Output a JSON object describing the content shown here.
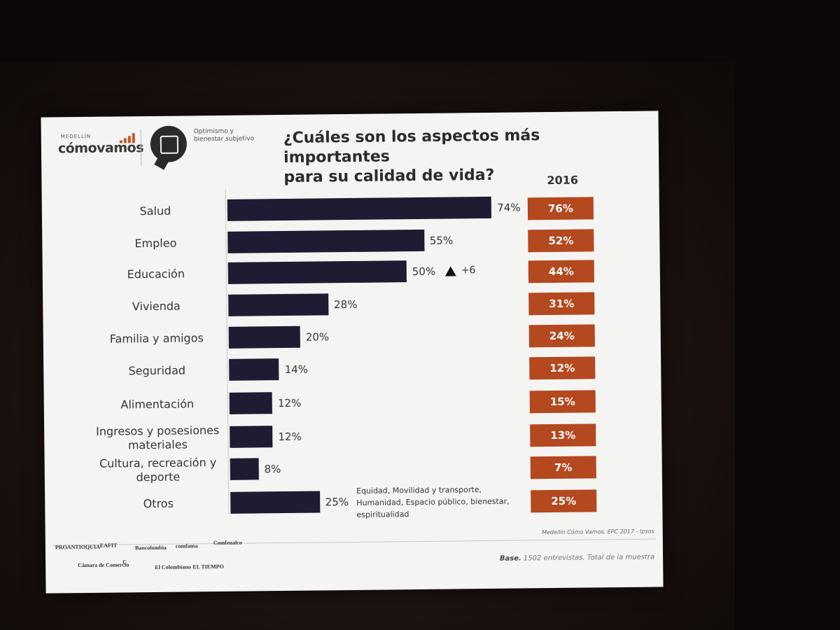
{
  "header": {
    "logo_small": "MEDELLÍN",
    "logo_main": "cómovamos",
    "section_label_1": "Optimismo y",
    "section_label_2": "bienestar subjetivo",
    "title_line1": "¿Cuáles son los aspectos más importantes",
    "title_line2": "para su calidad de vida?"
  },
  "colors": {
    "bar": "#1f1b33",
    "box": "#b4481e"
  },
  "chart_data": {
    "type": "bar",
    "orientation": "horizontal",
    "title": "¿Cuáles son los aspectos más importantes para su calidad de vida?",
    "categories": [
      "Salud",
      "Empleo",
      "Educación",
      "Vivienda",
      "Familia y amigos",
      "Seguridad",
      "Alimentación",
      "Ingresos y posesiones materiales",
      "Cultura, recreación y deporte",
      "Otros"
    ],
    "category_lines": [
      [
        "Salud"
      ],
      [
        "Empleo"
      ],
      [
        "Educación"
      ],
      [
        "Vivienda"
      ],
      [
        "Familia y amigos"
      ],
      [
        "Seguridad"
      ],
      [
        "Alimentación"
      ],
      [
        "Ingresos y posesiones",
        "materiales"
      ],
      [
        "Cultura, recreación y",
        "deporte"
      ],
      [
        "Otros"
      ]
    ],
    "values": [
      74,
      55,
      50,
      28,
      20,
      14,
      12,
      12,
      8,
      25
    ],
    "value_labels": [
      "74%",
      "55%",
      "50%",
      "28%",
      "20%",
      "14%",
      "12%",
      "12%",
      "8%",
      "25%"
    ],
    "comparison_year": "2016",
    "comparison_labels": [
      "76%",
      "52%",
      "44%",
      "31%",
      "24%",
      "12%",
      "15%",
      "13%",
      "7%",
      "25%"
    ],
    "comparison_values": [
      76,
      52,
      44,
      31,
      24,
      12,
      15,
      13,
      7,
      25
    ],
    "annotation": {
      "category": "Educación",
      "symbol": "▲",
      "text": "+6"
    },
    "otros_note": [
      "Equidad, Movilidad y transporte,",
      "Humanidad, Espacio público, bienestar,",
      "espiritualidad"
    ],
    "grid": false
  },
  "footer": {
    "source": "Medellín Cómo Vamos. EPC 2017 - Ipsos",
    "base_label": "Base.",
    "base_text": " 1502 entrevistas. Total de la muestra",
    "sponsors": [
      "PROANTIOQUIA",
      "EAFIT",
      "Bancolombia",
      "comfama",
      "Comfenalco",
      "Cámara de Comercio",
      "C",
      "El Colombiano",
      "EL TIEMPO"
    ]
  }
}
